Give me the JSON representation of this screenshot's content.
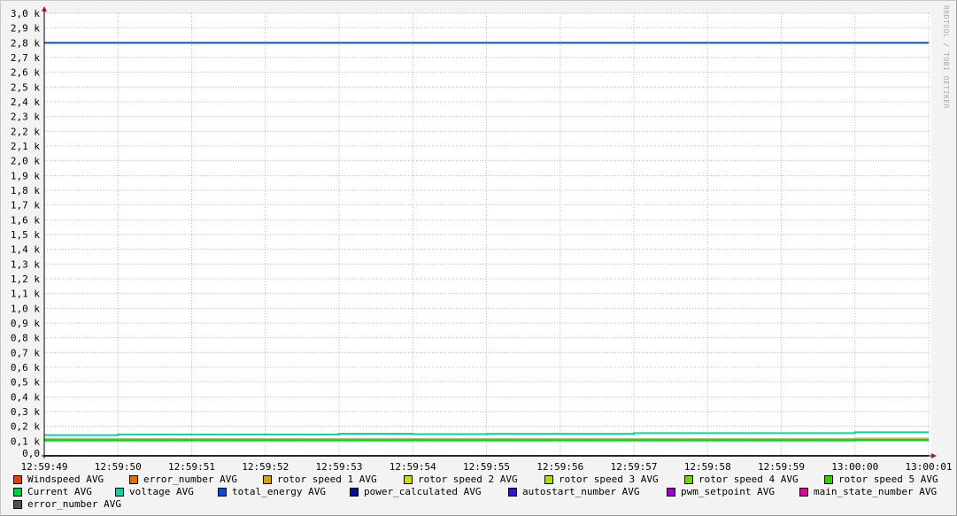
{
  "chart_data": {
    "type": "line",
    "watermark": "RRDTOOL / TOBI OETIKER",
    "x_ticks": [
      "12:59:49",
      "12:59:50",
      "12:59:51",
      "12:59:52",
      "12:59:53",
      "12:59:54",
      "12:59:55",
      "12:59:56",
      "12:59:57",
      "12:59:58",
      "12:59:59",
      "13:00:00",
      "13:00:01"
    ],
    "y_ticks": [
      "0,0",
      "0,1 k",
      "0,2 k",
      "0,3 k",
      "0,4 k",
      "0,5 k",
      "0,6 k",
      "0,7 k",
      "0,8 k",
      "0,9 k",
      "1,0 k",
      "1,1 k",
      "1,2 k",
      "1,3 k",
      "1,4 k",
      "1,5 k",
      "1,6 k",
      "1,7 k",
      "1,8 k",
      "1,9 k",
      "2,0 k",
      "2,1 k",
      "2,2 k",
      "2,3 k",
      "2,4 k",
      "2,5 k",
      "2,6 k",
      "2,7 k",
      "2,8 k",
      "2,9 k",
      "3,0 k"
    ],
    "ylim": [
      0,
      3000
    ],
    "grid": true,
    "legend_placement": "bottom",
    "series": [
      {
        "name": "Windspeed AVG",
        "color": "#e04000",
        "values": [
          0,
          0,
          0,
          0,
          0,
          0,
          0,
          0,
          0,
          0,
          0,
          0,
          0
        ]
      },
      {
        "name": "error_number AVG",
        "color": "#e07000",
        "values": [
          0,
          0,
          0,
          0,
          0,
          0,
          0,
          0,
          0,
          0,
          0,
          0,
          0
        ]
      },
      {
        "name": "rotor speed 1 AVG",
        "color": "#e0a000",
        "values": [
          115,
          115,
          115,
          115,
          115,
          115,
          115,
          115,
          115,
          115,
          115,
          117,
          117
        ]
      },
      {
        "name": "rotor speed 2 AVG",
        "color": "#d8d800",
        "values": [
          112,
          112,
          112,
          112,
          112,
          112,
          112,
          112,
          112,
          112,
          112,
          114,
          114
        ]
      },
      {
        "name": "rotor speed 3 AVG",
        "color": "#a8e000",
        "values": [
          110,
          110,
          110,
          110,
          110,
          110,
          110,
          110,
          110,
          110,
          110,
          112,
          112
        ]
      },
      {
        "name": "rotor speed 4 AVG",
        "color": "#70d800",
        "values": [
          108,
          108,
          108,
          108,
          108,
          108,
          108,
          108,
          108,
          108,
          108,
          110,
          110
        ]
      },
      {
        "name": "rotor speed 5 AVG",
        "color": "#30d000",
        "values": [
          106,
          106,
          106,
          106,
          106,
          106,
          106,
          106,
          106,
          106,
          106,
          108,
          108
        ]
      },
      {
        "name": "Current AVG",
        "color": "#00d040",
        "values": [
          104,
          104,
          104,
          104,
          104,
          104,
          104,
          104,
          104,
          104,
          104,
          106,
          106
        ]
      },
      {
        "name": "voltage AVG",
        "color": "#00d8a0",
        "values": [
          140,
          145,
          145,
          145,
          150,
          147,
          149,
          149,
          154,
          154,
          154,
          160,
          160
        ]
      },
      {
        "name": "total_energy AVG",
        "color": "#0050e0",
        "values": [
          2800,
          2800,
          2800,
          2800,
          2800,
          2800,
          2800,
          2800,
          2800,
          2800,
          2800,
          2800,
          2800
        ]
      },
      {
        "name": "power_calculated AVG",
        "color": "#0010a0",
        "values": [
          0,
          0,
          0,
          0,
          0,
          0,
          0,
          0,
          0,
          0,
          0,
          0,
          0
        ]
      },
      {
        "name": "autostart_number AVG",
        "color": "#3010e0",
        "values": [
          0,
          0,
          0,
          0,
          0,
          0,
          0,
          0,
          0,
          0,
          0,
          0,
          0
        ]
      },
      {
        "name": "pwm_setpoint AVG",
        "color": "#a000d0",
        "values": [
          0,
          0,
          0,
          0,
          0,
          0,
          0,
          0,
          0,
          0,
          0,
          0,
          0
        ]
      },
      {
        "name": "main_state_number AVG",
        "color": "#e0009a",
        "values": [
          0,
          0,
          0,
          0,
          0,
          0,
          0,
          0,
          0,
          0,
          0,
          0,
          0
        ]
      },
      {
        "name": "error_number AVG",
        "color": "#505050",
        "values": [
          0,
          0,
          0,
          0,
          0,
          0,
          0,
          0,
          0,
          0,
          0,
          0,
          0
        ]
      }
    ]
  }
}
